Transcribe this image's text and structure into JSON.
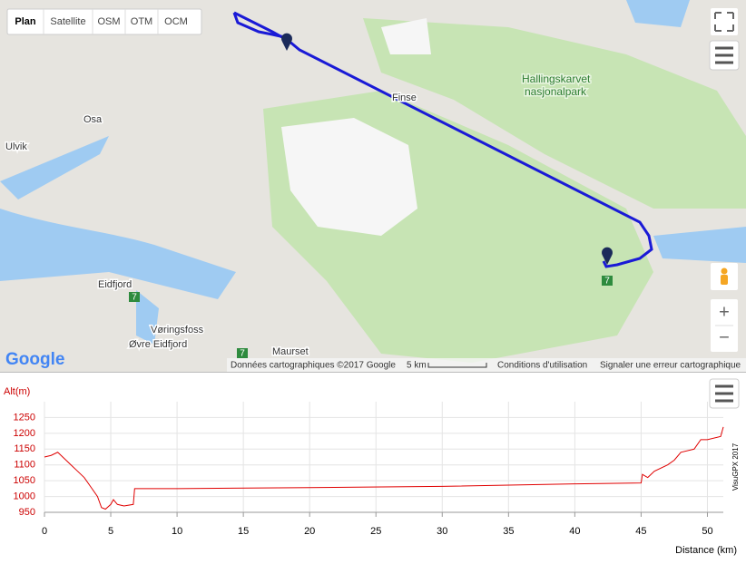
{
  "map": {
    "tabs": [
      "Plan",
      "Satellite",
      "OSM",
      "OTM",
      "OCM"
    ],
    "places": [
      "Osa",
      "Ulvik",
      "Eidfjord",
      "Vøringsfoss",
      "Øvre Eidfjord",
      "Maurset",
      "Finse"
    ],
    "park": [
      "Hallingskarvet",
      "nasjonalpark"
    ],
    "roads": [
      "7",
      "7",
      "7"
    ],
    "logo": "Google",
    "attribution": "Données cartographiques ©2017 Google",
    "scale": "5 km",
    "terms": "Conditions d'utilisation",
    "report": "Signaler une erreur cartographique",
    "zoom_in": "+",
    "zoom_out": "−"
  },
  "chart_data": {
    "type": "line",
    "ylabel": "Alt(m)",
    "xlabel": "Distance (km)",
    "watermark": "VisuGPX 2017",
    "x": [
      0,
      0.5,
      1,
      1.5,
      2,
      2.5,
      3,
      3.5,
      4,
      4.3,
      4.6,
      5,
      5.2,
      5.5,
      6,
      6.7,
      6.8,
      10,
      20,
      30,
      40,
      45,
      45.1,
      45.5,
      46,
      47,
      47.5,
      48,
      49,
      49.5,
      50,
      51,
      51.2
    ],
    "values": [
      1125,
      1130,
      1140,
      1120,
      1100,
      1080,
      1060,
      1030,
      1000,
      965,
      960,
      975,
      990,
      975,
      970,
      975,
      1025,
      1025,
      1028,
      1032,
      1040,
      1043,
      1070,
      1060,
      1080,
      1100,
      1115,
      1140,
      1150,
      1180,
      1180,
      1190,
      1220
    ],
    "color": "#e00000",
    "xlim": [
      0,
      51.2
    ],
    "ylim": [
      950,
      1300
    ],
    "xticks": [
      0,
      5,
      10,
      15,
      20,
      25,
      30,
      35,
      40,
      45,
      50
    ],
    "yticks": [
      950,
      1000,
      1050,
      1100,
      1150,
      1200,
      1250
    ],
    "grid": true
  }
}
